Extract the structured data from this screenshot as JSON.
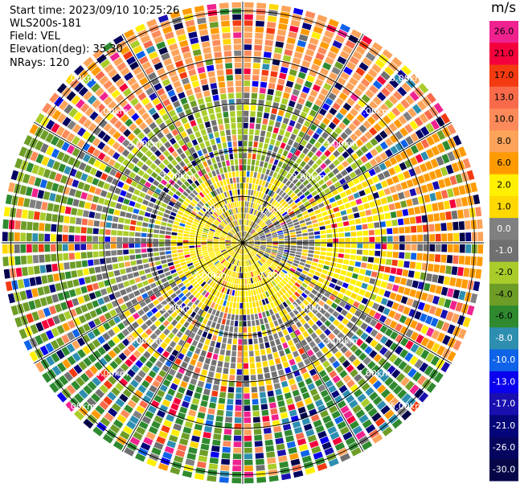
{
  "header": {
    "start_time": "Start time: 2023/09/10 10:25:26",
    "site": "WLS200s-181",
    "field": "Field: VEL",
    "elevation": "Elevation(deg): 35.30",
    "nrays": "NRays: 120"
  },
  "colorbar": {
    "unit": "m/s",
    "levels": [
      {
        "label": "26.0",
        "color": "#f0228f"
      },
      {
        "label": "21.0",
        "color": "#f4003c"
      },
      {
        "label": "17.0",
        "color": "#f43a10"
      },
      {
        "label": "13.0",
        "color": "#f86a4a"
      },
      {
        "label": "10.0",
        "color": "#fd8a5a"
      },
      {
        "label": "8.0",
        "color": "#fda35a"
      },
      {
        "label": "6.0",
        "color": "#ff9b00"
      },
      {
        "label": "2.0",
        "color": "#fff000"
      },
      {
        "label": "1.0",
        "color": "#ffd800"
      },
      {
        "label": "0.0",
        "color": "#808080"
      },
      {
        "label": "-1.0",
        "color": "#707070"
      },
      {
        "label": "-2.0",
        "color": "#a9cc2a"
      },
      {
        "label": "-4.0",
        "color": "#6e9d27"
      },
      {
        "label": "-6.0",
        "color": "#2f8a2f"
      },
      {
        "label": "-8.0",
        "color": "#2d8eb0"
      },
      {
        "label": "-10.0",
        "color": "#0e63e8"
      },
      {
        "label": "-13.0",
        "color": "#0a00ee"
      },
      {
        "label": "-17.0",
        "color": "#1a10b0"
      },
      {
        "label": "-21.0",
        "color": "#05057a"
      },
      {
        "label": "-26.0",
        "color": "#050560"
      },
      {
        "label": "-30.0",
        "color": "#050548"
      }
    ]
  },
  "chart_data": {
    "type": "heatmap",
    "projection": "polar",
    "field": "VEL",
    "unit": "m/s",
    "nrays": 120,
    "range_rings_km": [
      1,
      2,
      3,
      4,
      5
    ],
    "range_ring_labels": [
      "1.00km",
      "2.00km",
      "3.00km",
      "4.00km",
      "5.00km"
    ],
    "spokes_deg": [
      0,
      30,
      60,
      90,
      120,
      150,
      180,
      210,
      240,
      270,
      300,
      330
    ],
    "sectors": [
      {
        "azimuth_from": 300,
        "azimuth_to": 60,
        "near_velocity": 1.0,
        "mid_velocity": -2.0,
        "far_velocity": 8.0
      },
      {
        "azimuth_from": 60,
        "azimuth_to": 120,
        "near_velocity": 0.0,
        "mid_velocity": 2.0,
        "far_velocity": 6.0
      },
      {
        "azimuth_from": 120,
        "azimuth_to": 240,
        "near_velocity": 2.0,
        "mid_velocity": 0.0,
        "far_velocity": -6.0
      },
      {
        "azimuth_from": 240,
        "azimuth_to": 300,
        "near_velocity": 2.0,
        "mid_velocity": -1.0,
        "far_velocity": -4.0
      }
    ]
  }
}
